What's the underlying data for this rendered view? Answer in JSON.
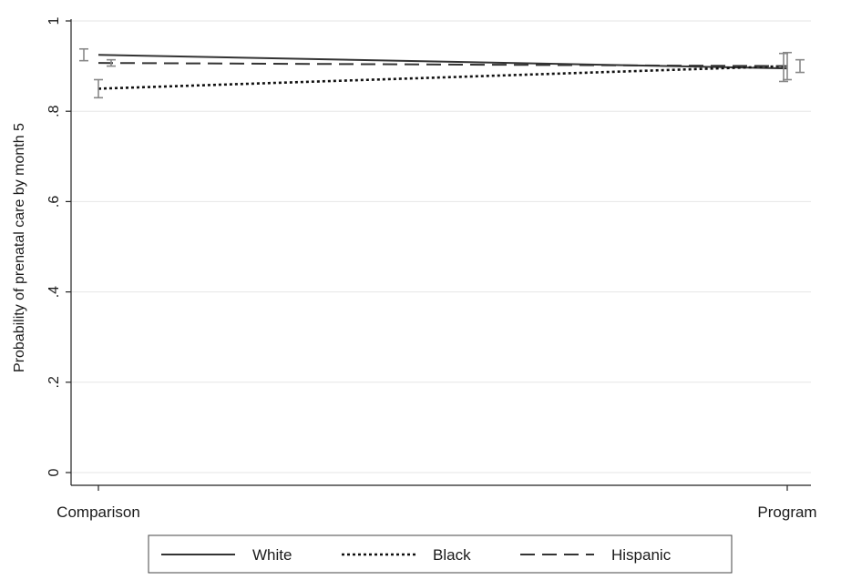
{
  "chart_data": {
    "type": "line",
    "title": "",
    "xlabel": "",
    "ylabel": "Probability of prenatal care by month 5",
    "categories": [
      "Comparison",
      "Program"
    ],
    "y_ticks": [
      0,
      0.2,
      0.4,
      0.6,
      0.8,
      1
    ],
    "y_tick_labels": [
      "0",
      ".2",
      ".4",
      ".6",
      ".8",
      "1"
    ],
    "ylim": [
      0,
      1
    ],
    "grid": true,
    "legend_position": "bottom",
    "series": [
      {
        "name": "White",
        "style": "solid",
        "color": "#333333",
        "values": [
          0.925,
          0.895
        ],
        "ci": [
          [
            0.912,
            0.938
          ],
          [
            0.866,
            0.928
          ]
        ]
      },
      {
        "name": "Black",
        "style": "dotted",
        "color": "#111111",
        "values": [
          0.85,
          0.9
        ],
        "ci": [
          [
            0.83,
            0.87
          ],
          [
            0.87,
            0.93
          ]
        ]
      },
      {
        "name": "Hispanic",
        "style": "dashed",
        "color": "#333333",
        "values": [
          0.907,
          0.9
        ],
        "ci": [
          [
            0.9,
            0.914
          ],
          [
            0.886,
            0.914
          ]
        ]
      }
    ]
  }
}
